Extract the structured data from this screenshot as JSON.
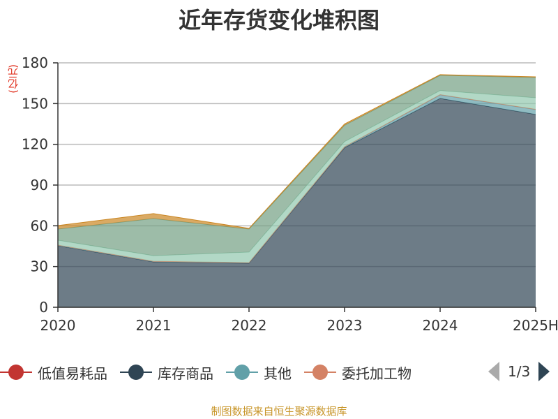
{
  "title": "近年存货变化堆积图",
  "unit": "(亿元)",
  "footer": "制图数据来自恒生聚源数据库",
  "legend": {
    "items": [
      {
        "name": "低值易耗品",
        "color": "#c23531"
      },
      {
        "name": "库存商品",
        "color": "#2f4554"
      },
      {
        "name": "其他",
        "color": "#61a0a8"
      },
      {
        "name": "委托加工物",
        "color": "#d48265"
      }
    ],
    "page": "1/3"
  },
  "chart_data": {
    "type": "area",
    "stacked": true,
    "title": "近年存货变化堆积图",
    "ylabel": "(亿元)",
    "categories": [
      "2020",
      "2021",
      "2022",
      "2023",
      "2024",
      "2025H"
    ],
    "ylim": [
      0,
      180
    ],
    "yticks": [
      0,
      30,
      60,
      90,
      120,
      150,
      180
    ],
    "grid": true,
    "legend_position": "bottom",
    "series": [
      {
        "name": "低值易耗品",
        "color": "#c23531",
        "values": [
          0,
          0,
          0,
          0,
          0,
          0
        ]
      },
      {
        "name": "库存商品",
        "color": "#2f4554",
        "values": [
          45.3,
          33.4,
          32.4,
          117.5,
          153.8,
          142
        ]
      },
      {
        "name": "其他",
        "color": "#61a0a8",
        "values": [
          0.3,
          0.3,
          0.3,
          0.5,
          2.6,
          3.6
        ]
      },
      {
        "name": "委托加工物",
        "color": "#d48265",
        "values": [
          0.2,
          0.2,
          0.2,
          0.2,
          0.2,
          0.2
        ]
      },
      {
        "color": "#91c7ae",
        "values": [
          3.6,
          4.1,
          7.7,
          3.8,
          3.0,
          8.5
        ]
      },
      {
        "color": "#749f83",
        "values": [
          8.2,
          27.3,
          17,
          12,
          11.2,
          14.9
        ]
      },
      {
        "color": "#ca8622",
        "values": [
          2.6,
          3.7,
          0.5,
          1,
          0.5,
          0.5
        ]
      }
    ]
  }
}
